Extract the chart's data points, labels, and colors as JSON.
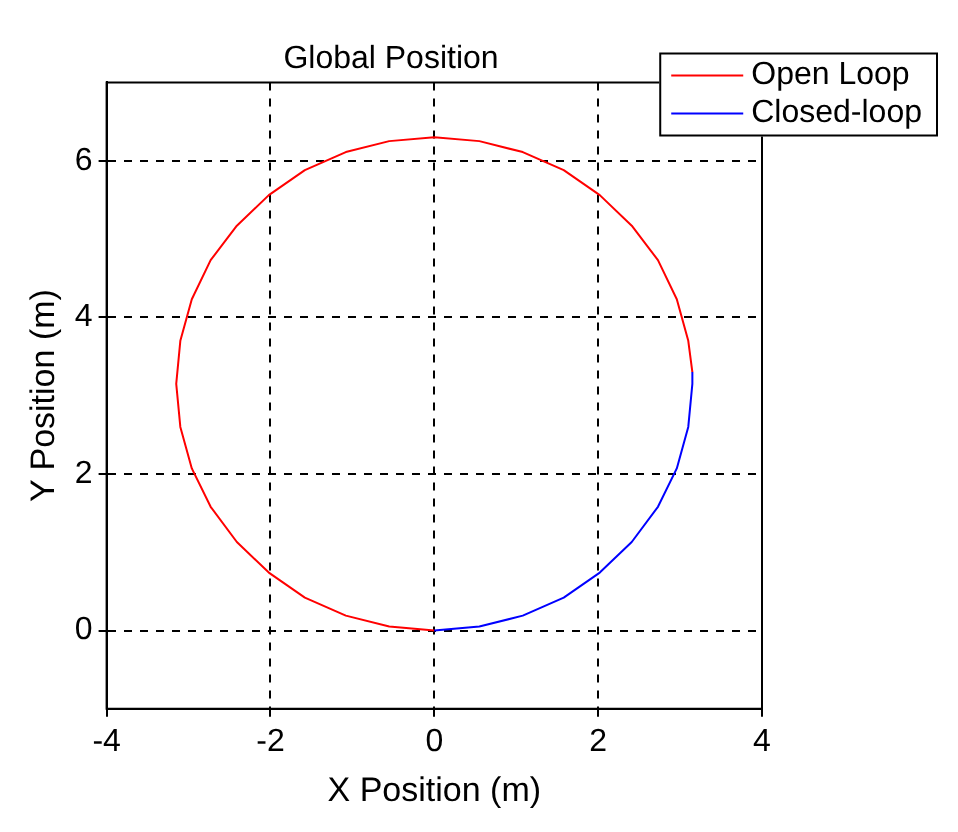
{
  "chart_data": {
    "type": "line",
    "title": "Global Position",
    "xlabel": "X Position (m)",
    "ylabel": "Y Position (m)",
    "xlim": [
      -4,
      4
    ],
    "xticks": [
      -4,
      -2,
      0,
      2,
      4
    ],
    "ylim": [
      -1,
      7
    ],
    "yticks": [
      0,
      2,
      4,
      6
    ],
    "grid": true,
    "legend": "top right",
    "line_style": "dashed",
    "marker": "none",
    "series": [
      {
        "name": "Open Loop",
        "color": "#ff0000",
        "line_style": "solid",
        "x": [
          3.15,
          3.1,
          2.96,
          2.73,
          2.41,
          2.02,
          1.58,
          1.08,
          0.55,
          0,
          -0.55,
          -1.08,
          -1.58,
          -2.02,
          -2.41,
          -2.73,
          -2.96,
          -3.1,
          -3.15,
          -3.1,
          -2.96,
          -2.73,
          -2.41,
          -2.02,
          -1.58,
          -1.08,
          -0.55,
          0
        ],
        "values": [
          3.3,
          3.7,
          4.23,
          4.73,
          5.17,
          5.56,
          5.88,
          6.11,
          6.25,
          6.3,
          6.25,
          6.11,
          5.88,
          5.56,
          5.17,
          4.73,
          4.23,
          3.7,
          3.15,
          2.6,
          2.07,
          1.58,
          1.13,
          0.74,
          0.42,
          0.19,
          0.05,
          0
        ]
      },
      {
        "name": "Closed-loop",
        "color": "#0000ff",
        "line_style": "solid",
        "x": [
          0,
          0.55,
          1.08,
          1.58,
          2.02,
          2.41,
          2.73,
          2.96,
          3.1,
          3.15,
          3.15
        ],
        "values": [
          0,
          0.05,
          0.19,
          0.42,
          0.74,
          1.13,
          1.58,
          2.07,
          2.6,
          3.15,
          3.3
        ]
      }
    ]
  }
}
